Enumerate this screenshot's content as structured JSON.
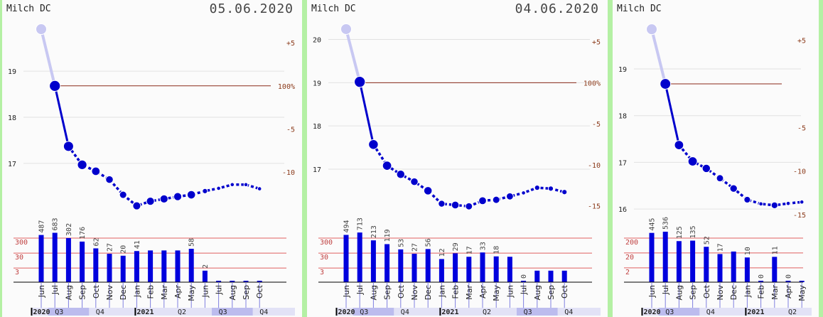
{
  "chart_data": [
    {
      "type": "line",
      "title": "Milch DC",
      "date": "05.06.2020",
      "categories": [
        "Jun",
        "Jul",
        "Aug",
        "Sep",
        "Oct",
        "Nov",
        "Dec",
        "Jan",
        "Feb",
        "Mar",
        "Apr",
        "May",
        "Jun",
        "Jul",
        "Aug",
        "Sep",
        "Oct"
      ],
      "values": [
        19.91,
        18.68,
        17.37,
        16.97,
        16.83,
        16.65,
        16.32,
        16.08,
        16.18,
        16.23,
        16.28,
        16.32,
        16.4,
        16.46,
        16.54,
        16.54,
        16.45
      ],
      "color": "#0000cc",
      "ylim": [
        15.92,
        20.08
      ],
      "yticks": [
        17,
        18,
        19
      ],
      "y2lim": [
        -14.78,
        7.49
      ],
      "y2ticks": [
        {
          "value": 5,
          "label": "+5"
        },
        {
          "value": 0,
          "label": "100%"
        },
        {
          "value": -5,
          "label": "-5"
        },
        {
          "value": -10,
          "label": "-10"
        }
      ],
      "volume": {
        "type": "bar",
        "color": "#0000dd",
        "log_scale": true,
        "ylim": [
          0.34,
          4650
        ],
        "yticks": [
          3,
          30,
          300
        ],
        "values": [
          487,
          683,
          302,
          176,
          62,
          27,
          20,
          41,
          45,
          45,
          45,
          58,
          2,
          0,
          0,
          0,
          0
        ],
        "value_labels": [
          "487",
          "683",
          "302",
          "176",
          "62",
          "27",
          "20",
          "41",
          null,
          null,
          null,
          "58",
          "2",
          null,
          null,
          null,
          null
        ]
      },
      "periods": [
        "2020",
        "Q3",
        "Q4",
        "2021",
        "Q2",
        "Q3",
        "Q4"
      ]
    },
    {
      "type": "line",
      "title": "Milch DC",
      "date": "04.06.2020",
      "categories": [
        "Jun",
        "Jul",
        "Aug",
        "Sep",
        "Oct",
        "Nov",
        "Dec",
        "Jan",
        "Feb",
        "Mar",
        "Apr",
        "May",
        "Jun",
        "Jul",
        "Aug",
        "Sep",
        "Oct"
      ],
      "values": [
        20.24,
        19.02,
        17.57,
        17.08,
        16.88,
        16.71,
        16.5,
        16.2,
        16.17,
        16.14,
        16.27,
        16.29,
        16.37,
        16.45,
        16.57,
        16.55,
        16.47
      ],
      "color": "#0000cc",
      "ylim": [
        15.98,
        20.42
      ],
      "yticks": [
        17,
        18,
        19,
        20
      ],
      "y2lim": [
        -15.89,
        7.47
      ],
      "y2ticks": [
        {
          "value": 5,
          "label": "+5"
        },
        {
          "value": 0,
          "label": "100%"
        },
        {
          "value": -5,
          "label": "-5"
        },
        {
          "value": -10,
          "label": "-10"
        },
        {
          "value": -15,
          "label": "-15"
        }
      ],
      "volume": {
        "type": "bar",
        "color": "#0000dd",
        "log_scale": true,
        "ylim": [
          0.34,
          4650
        ],
        "yticks": [
          3,
          30,
          300
        ],
        "values": [
          494,
          713,
          213,
          119,
          53,
          27,
          56,
          12,
          29,
          17,
          33,
          18,
          17,
          0,
          2,
          2,
          2
        ],
        "value_labels": [
          "494",
          "713",
          "213",
          "119",
          "53",
          "27",
          "56",
          "12",
          "29",
          "17",
          "33",
          "18",
          null,
          "0",
          null,
          null,
          null
        ]
      },
      "periods": [
        "2020",
        "Q3",
        "Q4",
        "2021",
        "Q2",
        "Q3",
        "Q4"
      ]
    },
    {
      "type": "line",
      "title": "Milch DC",
      "categories": [
        "Jun",
        "Jul",
        "Aug",
        "Sep",
        "Oct",
        "Nov",
        "Dec",
        "Jan",
        "Feb",
        "Mar",
        "Apr",
        "May"
      ],
      "values": [
        19.85,
        18.68,
        17.37,
        17.02,
        16.87,
        16.66,
        16.44,
        16.2,
        16.11,
        16.08,
        16.12,
        16.15
      ],
      "color": "#0000cc",
      "ylim": [
        15.91,
        20.02
      ],
      "yticks": [
        16,
        17,
        18,
        19
      ],
      "y2lim": [
        -14.83,
        7.17
      ],
      "y2ticks": [
        {
          "value": 5,
          "label": "+5"
        },
        {
          "value": -5,
          "label": "-5"
        },
        {
          "value": -10,
          "label": "-10"
        },
        {
          "value": -15,
          "label": "-15"
        }
      ],
      "volume": {
        "type": "bar",
        "color": "#0000dd",
        "log_scale": true,
        "ylim": [
          0.22,
          3100
        ],
        "yticks": [
          2,
          20,
          200
        ],
        "values": [
          445,
          536,
          125,
          135,
          52,
          17,
          25,
          10,
          0,
          11,
          0,
          0
        ],
        "value_labels": [
          "445",
          "536",
          "125",
          "135",
          "52",
          "17",
          null,
          "10",
          "0",
          "11",
          "0",
          null
        ]
      },
      "periods": [
        "2020",
        "Q3",
        "Q4",
        "2021",
        "Q2"
      ]
    }
  ]
}
